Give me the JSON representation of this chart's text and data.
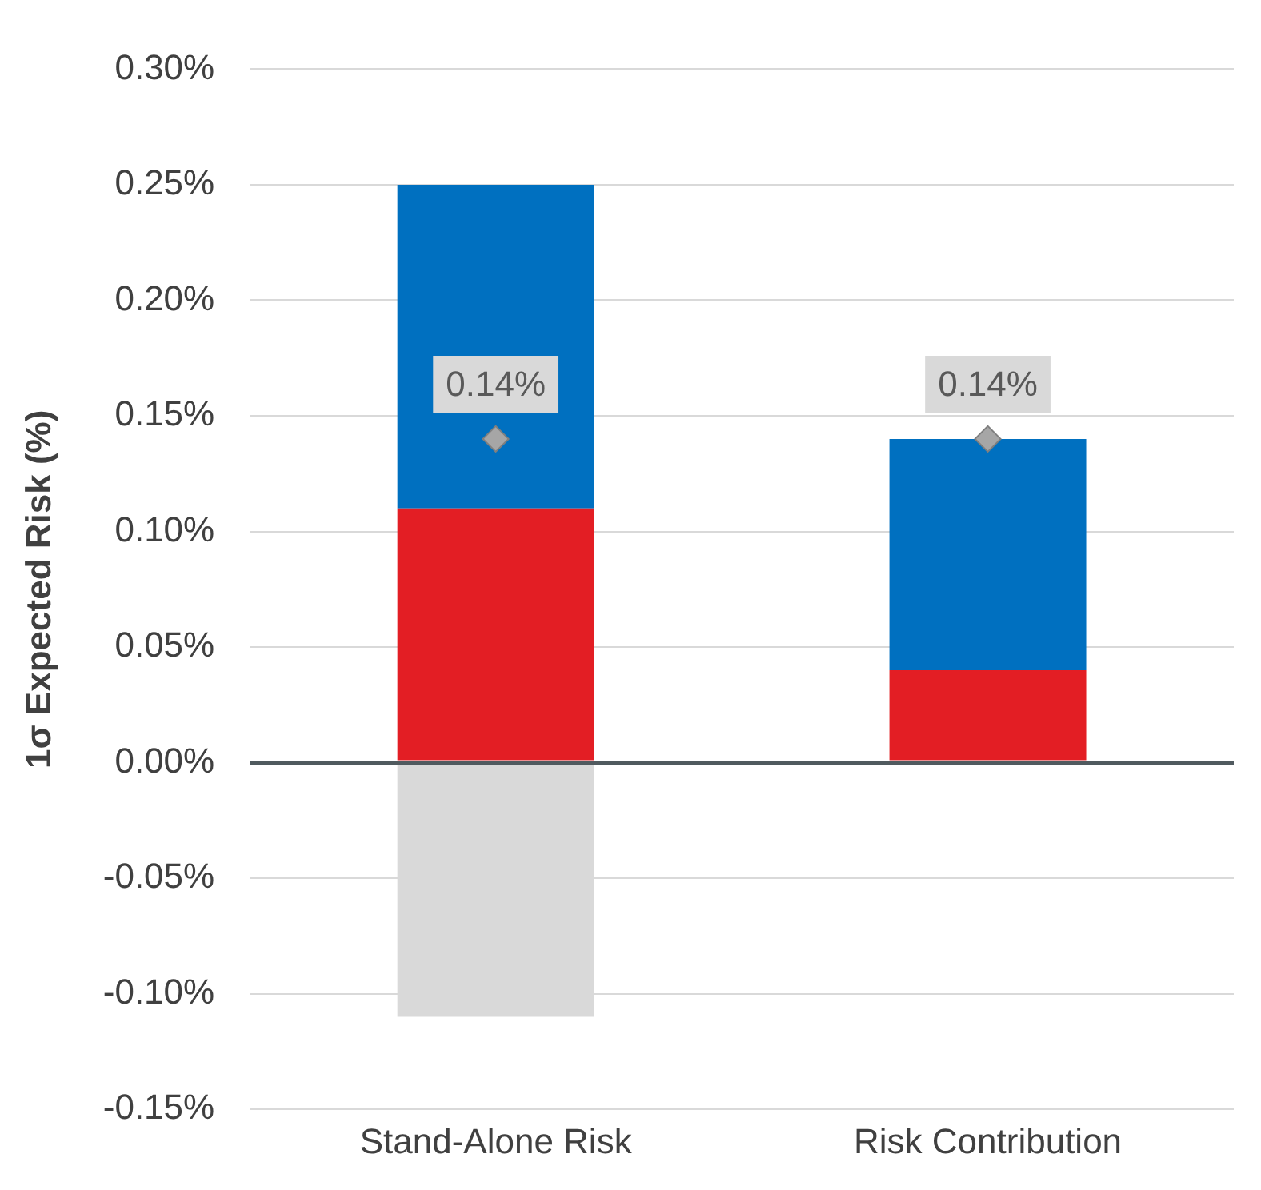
{
  "chart_data": {
    "type": "bar",
    "stacked": true,
    "ylabel": "1σ Expected Risk (%)",
    "categories": [
      "Stand-Alone Risk",
      "Risk Contribution"
    ],
    "series": [
      {
        "color": "#e31e24",
        "values": [
          0.11,
          0.04
        ]
      },
      {
        "color": "#0070c0",
        "values": [
          0.14,
          0.1
        ]
      },
      {
        "color": "#d9d9d9",
        "values": [
          -0.11,
          null
        ]
      },
      {
        "type": "scatter",
        "marker": "diamond",
        "color": "#a6a6a6",
        "x": [
          "Stand-Alone Risk",
          "Risk Contribution"
        ],
        "values": [
          0.14,
          0.14
        ],
        "value_labels": [
          "0.14%",
          "0.14%"
        ]
      }
    ],
    "ylim": [
      -0.15,
      0.3
    ],
    "yticks": [
      {
        "value": -0.15,
        "label": "-0.15%"
      },
      {
        "value": -0.1,
        "label": "-0.10%"
      },
      {
        "value": -0.05,
        "label": "-0.05%"
      },
      {
        "value": 0,
        "label": "0.00%"
      },
      {
        "value": 0.05,
        "label": "0.05%"
      },
      {
        "value": 0.1,
        "label": "0.10%"
      },
      {
        "value": 0.15,
        "label": "0.15%"
      },
      {
        "value": 0.2,
        "label": "0.20%"
      },
      {
        "value": 0.25,
        "label": "0.25%"
      },
      {
        "value": 0.3,
        "label": "0.30%"
      }
    ],
    "grid": "y",
    "legend": false
  }
}
